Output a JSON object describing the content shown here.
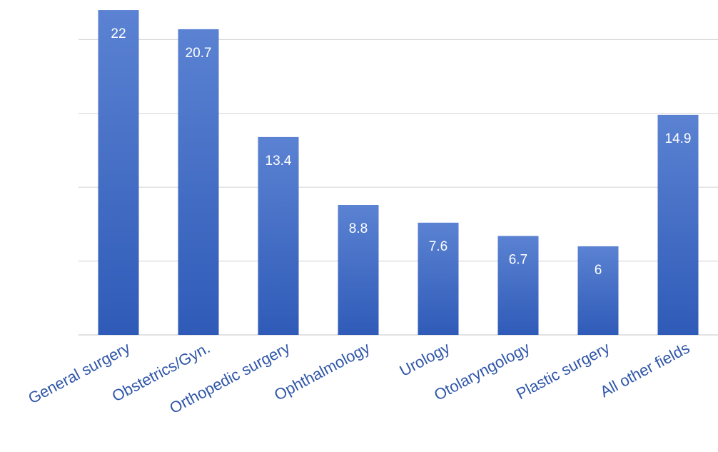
{
  "chart_data": {
    "type": "bar",
    "categories": [
      "General surgery",
      "Obstetrics/Gyn.",
      "Orthopedic surgery",
      "Ophthalmology",
      "Urology",
      "Otolaryngology",
      "Plastic surgery",
      "All other fields"
    ],
    "values": [
      22,
      20.7,
      13.4,
      8.8,
      7.6,
      6.7,
      6,
      14.9
    ],
    "value_labels": [
      "22",
      "20.7",
      "13.4",
      "8.8",
      "7.6",
      "6.7",
      "6",
      "14.9"
    ],
    "ylim": [
      0,
      22
    ],
    "gridlines": [
      0,
      5,
      10,
      15,
      20
    ],
    "grid": true,
    "legend": "none",
    "colors": {
      "bar_top": "#5b82d2",
      "bar_bottom": "#2f5bb8",
      "category_text": "#2f56a8",
      "grid": "#d9d9d9",
      "value_text": "#ffffff"
    }
  }
}
